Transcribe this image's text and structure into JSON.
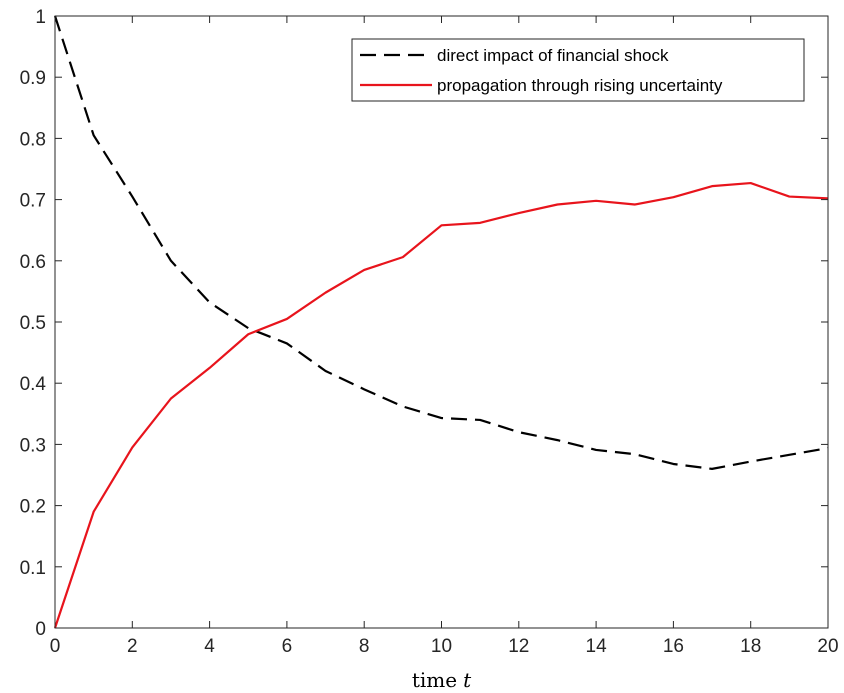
{
  "chart_data": {
    "type": "line",
    "title": "",
    "xlabel": "time",
    "xlabel_variable": "t",
    "ylabel": "",
    "xlim": [
      0,
      20
    ],
    "ylim": [
      0,
      1
    ],
    "xticks": [
      "0",
      "2",
      "4",
      "6",
      "8",
      "10",
      "12",
      "14",
      "16",
      "18",
      "20"
    ],
    "yticks": [
      "0",
      "0.1",
      "0.2",
      "0.3",
      "0.4",
      "0.5",
      "0.6",
      "0.7",
      "0.8",
      "0.9",
      "1"
    ],
    "grid": false,
    "legend_position": "top-right",
    "x": [
      0,
      1,
      2,
      3,
      4,
      5,
      6,
      7,
      8,
      9,
      10,
      11,
      12,
      13,
      14,
      15,
      16,
      17,
      18,
      19,
      20
    ],
    "series": [
      {
        "name": "direct impact of financial shock",
        "color": "#000000",
        "dash": "dashed",
        "values": [
          1.0,
          0.805,
          0.705,
          0.6,
          0.532,
          0.49,
          0.465,
          0.42,
          0.39,
          0.362,
          0.343,
          0.34,
          0.32,
          0.307,
          0.291,
          0.284,
          0.268,
          0.26,
          0.272,
          0.283,
          0.294
        ]
      },
      {
        "name": "propagation through rising uncertainty",
        "color": "#e8141c",
        "dash": "solid",
        "values": [
          0.0,
          0.19,
          0.295,
          0.375,
          0.425,
          0.48,
          0.505,
          0.548,
          0.585,
          0.606,
          0.658,
          0.662,
          0.678,
          0.692,
          0.698,
          0.692,
          0.704,
          0.722,
          0.727,
          0.705,
          0.702
        ]
      }
    ]
  }
}
